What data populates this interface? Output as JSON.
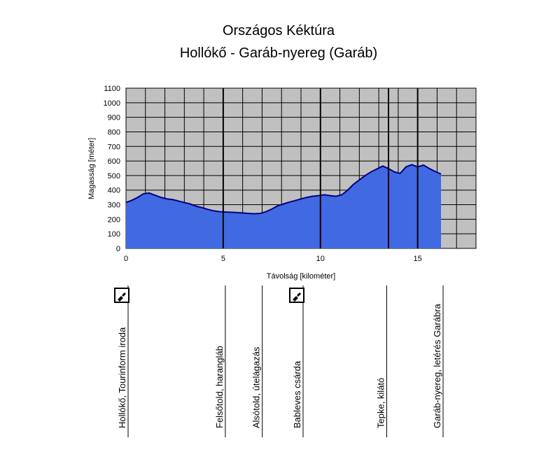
{
  "chart_data": {
    "type": "area",
    "title": "Országos Kéktúra",
    "subtitle": "Hollókő - Garáb-nyereg (Garáb)",
    "xlabel": "Távolság [kilométer]",
    "ylabel": "Magasság [méter]",
    "xlim": [
      0,
      18
    ],
    "ylim": [
      0,
      1100
    ],
    "x_ticks": [
      0,
      5,
      10,
      15
    ],
    "y_ticks": [
      0,
      100,
      200,
      300,
      400,
      500,
      600,
      700,
      800,
      900,
      1000,
      1100
    ],
    "x_grid_step": 1,
    "y_grid_step": 100,
    "grid": true,
    "plot_background": "#c0c0c0",
    "fill_color": "#4169e1",
    "line_color": "#000080",
    "x": [
      0,
      0.3,
      0.6,
      0.9,
      1.2,
      1.5,
      1.8,
      2.1,
      2.4,
      2.7,
      3.0,
      3.3,
      3.6,
      3.9,
      4.2,
      4.5,
      4.8,
      5.1,
      5.4,
      5.7,
      6.0,
      6.3,
      6.6,
      6.9,
      7.2,
      7.5,
      7.8,
      8.1,
      8.4,
      8.7,
      9.0,
      9.3,
      9.6,
      9.9,
      10.2,
      10.5,
      10.8,
      11.1,
      11.4,
      11.7,
      12.0,
      12.3,
      12.6,
      12.9,
      13.2,
      13.5,
      13.8,
      14.1,
      14.4,
      14.7,
      15.0,
      15.3,
      15.6,
      15.9,
      16.2
    ],
    "y": [
      315,
      330,
      350,
      375,
      380,
      365,
      350,
      340,
      335,
      325,
      315,
      305,
      290,
      280,
      268,
      258,
      252,
      250,
      248,
      246,
      243,
      240,
      238,
      240,
      252,
      270,
      292,
      305,
      318,
      328,
      340,
      350,
      358,
      362,
      368,
      362,
      358,
      368,
      400,
      440,
      470,
      500,
      525,
      545,
      565,
      548,
      525,
      515,
      560,
      575,
      560,
      572,
      548,
      528,
      510
    ],
    "waypoints": [
      {
        "km": 0.0,
        "label": "Hollókő, Tourinform iroda",
        "stamp": true
      },
      {
        "km": 5.0,
        "label": "Felsőtold, harangláb",
        "stamp": false
      },
      {
        "km": 6.9,
        "label": "Alsótold, útelágazás",
        "stamp": false
      },
      {
        "km": 9.0,
        "label": "Bableves csárda",
        "stamp": true
      },
      {
        "km": 13.3,
        "label": "Tepke, kilátó",
        "stamp": false
      },
      {
        "km": 16.2,
        "label": "Garáb-nyereg, letérés Garábra",
        "stamp": false
      }
    ],
    "vertical_markers_km": [
      5.0,
      10.0,
      13.5,
      15.0
    ]
  }
}
